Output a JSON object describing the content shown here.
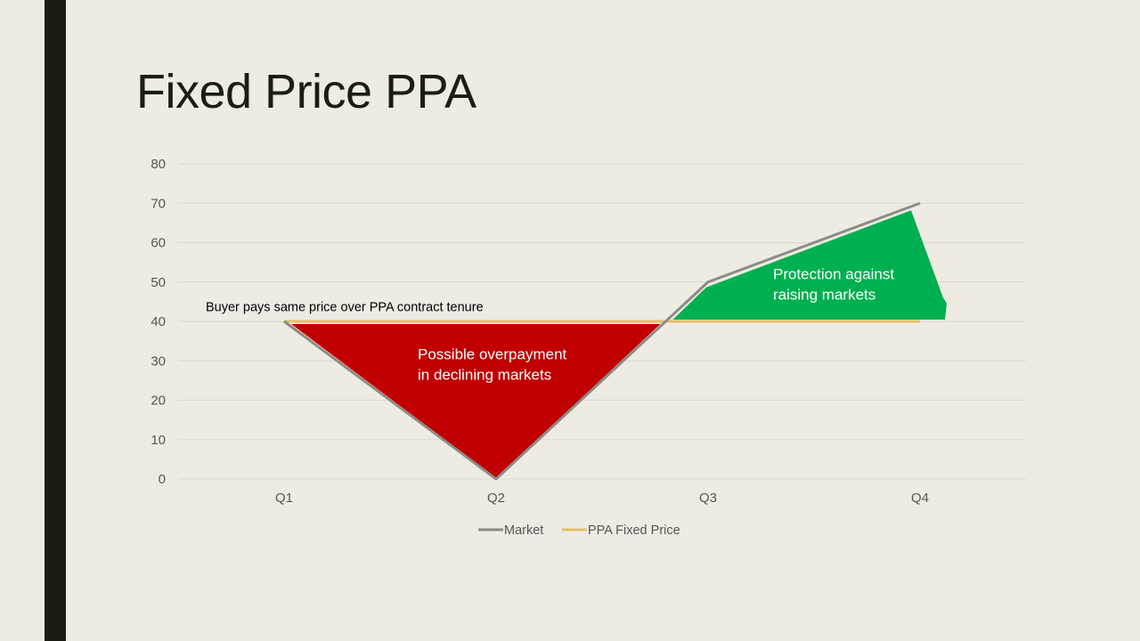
{
  "slide": {
    "title": "Fixed Price PPA"
  },
  "colors": {
    "background": "#eeebe3",
    "accent_bar": "#1b1c12",
    "market_line": "#8c8b87",
    "ppa_line": "#e3bf6a",
    "overpayment_fill": "#c00000",
    "protection_fill": "#00b050",
    "gridline": "#dcd9d2"
  },
  "chart_data": {
    "type": "line",
    "categories": [
      "Q1",
      "Q2",
      "Q3",
      "Q4"
    ],
    "series": [
      {
        "name": "Market",
        "values": [
          40,
          0,
          50,
          70
        ]
      },
      {
        "name": "PPA Fixed Price",
        "values": [
          40,
          40,
          40,
          40
        ]
      }
    ],
    "ylim": [
      0,
      80
    ],
    "yticks": [
      0,
      10,
      20,
      30,
      40,
      50,
      60,
      70,
      80
    ],
    "grid": true,
    "legend": "bottom",
    "annotations": {
      "fixed_price": "Buyer pays same price over PPA contract tenure",
      "overpayment": [
        "Possible overpayment",
        "in declining markets"
      ],
      "protection": [
        "Protection against",
        "raising markets"
      ]
    }
  }
}
